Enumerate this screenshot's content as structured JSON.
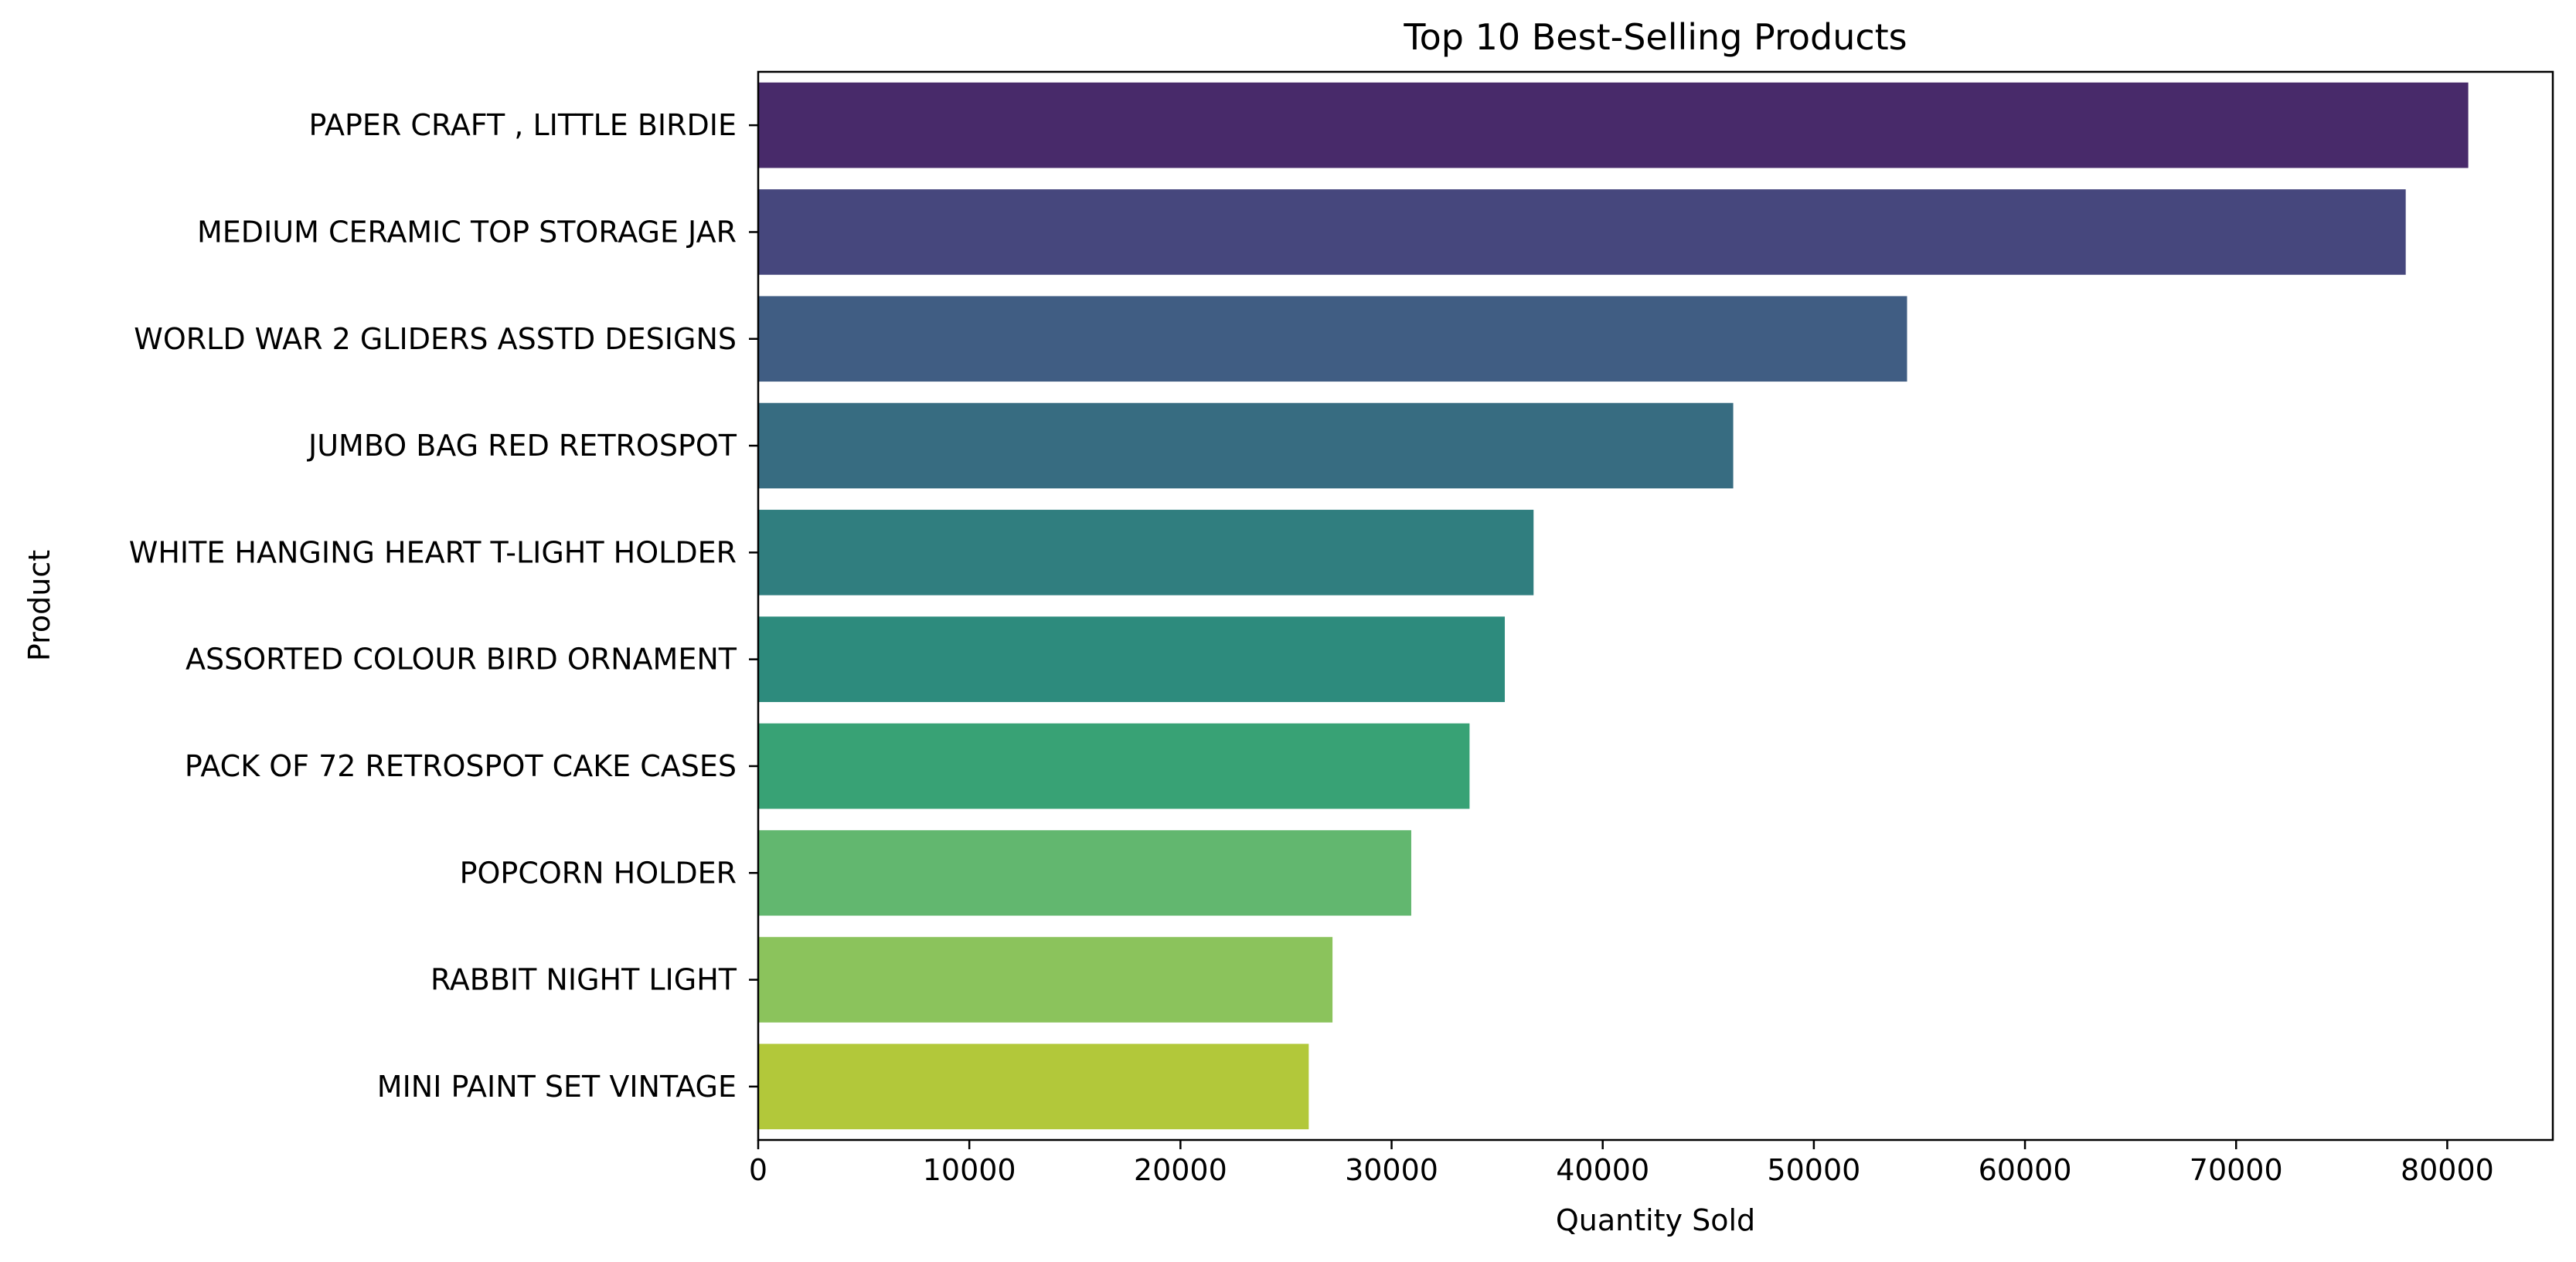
{
  "chart_data": {
    "type": "bar",
    "orientation": "horizontal",
    "title": "Top 10 Best-Selling Products",
    "xlabel": "Quantity Sold",
    "ylabel": "Product",
    "xlim": [
      0,
      85000
    ],
    "xticks": [
      0,
      10000,
      20000,
      30000,
      40000,
      50000,
      60000,
      70000,
      80000
    ],
    "grid": false,
    "legend": "none",
    "categories": [
      "PAPER CRAFT , LITTLE BIRDIE",
      "MEDIUM CERAMIC TOP STORAGE JAR",
      "WORLD WAR 2 GLIDERS ASSTD DESIGNS",
      "JUMBO BAG RED RETROSPOT",
      "WHITE HANGING HEART T-LIGHT HOLDER",
      "ASSORTED COLOUR BIRD ORNAMENT",
      "PACK OF 72 RETROSPOT CAKE CASES",
      "POPCORN HOLDER",
      "RABBIT NIGHT LIGHT",
      "MINI PAINT SET VINTAGE "
    ],
    "values": [
      80995,
      78033,
      54415,
      46181,
      36725,
      35362,
      33693,
      30931,
      27202,
      26076
    ],
    "colors": [
      "#482a6a",
      "#46477d",
      "#405d83",
      "#376c81",
      "#307e7f",
      "#2d8b7d",
      "#38a275",
      "#62b76f",
      "#8bc35c",
      "#b2c83a"
    ]
  }
}
